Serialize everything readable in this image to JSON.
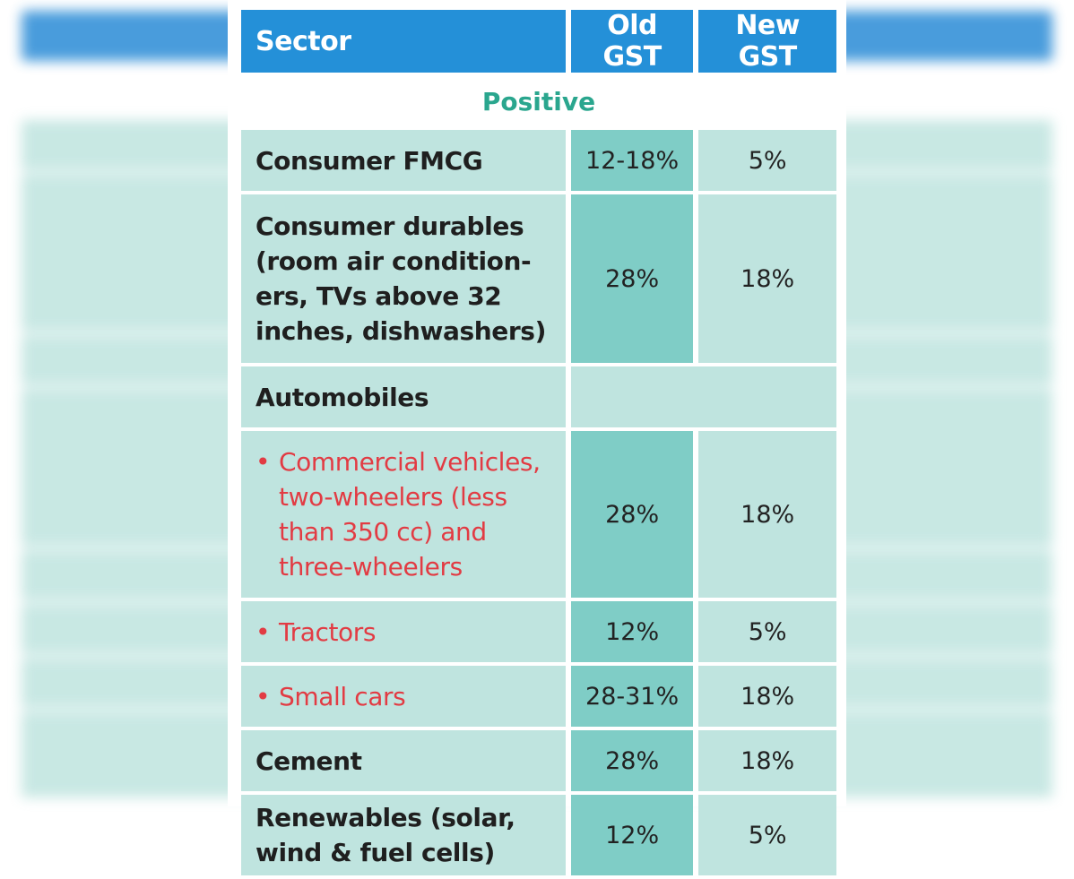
{
  "table": {
    "headers": {
      "sector": "Sector",
      "old": "Old GST",
      "new": "New GST"
    },
    "section_label": "Positive",
    "rows": [
      {
        "sector": "Consumer FMCG",
        "old": "12-18%",
        "new": "5%"
      },
      {
        "sector": "Consumer durables (room air condition-ers, TVs above 32 inches, dishwashers)",
        "old": "28%",
        "new": "18%"
      },
      {
        "sector": "Automobiles"
      },
      {
        "sub": "Commercial vehicles, two-wheelers (less than 350 cc) and three-wheelers",
        "bullet": "•",
        "old": "28%",
        "new": "18%"
      },
      {
        "sub": "Tractors",
        "bullet": "•",
        "old": "12%",
        "new": "5%"
      },
      {
        "sub": "Small cars",
        "bullet": "•",
        "old": "28-31%",
        "new": "18%"
      },
      {
        "sector": "Cement",
        "old": "28%",
        "new": "18%"
      },
      {
        "sector": "Renewables (solar, wind & fuel cells)",
        "old": "12%",
        "new": "5%"
      }
    ]
  },
  "colors": {
    "header_bg": "#2490d8",
    "row_bg": "#bfe4df",
    "old_col_bg": "#7fcdc6",
    "positive_label": "#2aa68e",
    "sub_item_text": "#e23b43"
  }
}
